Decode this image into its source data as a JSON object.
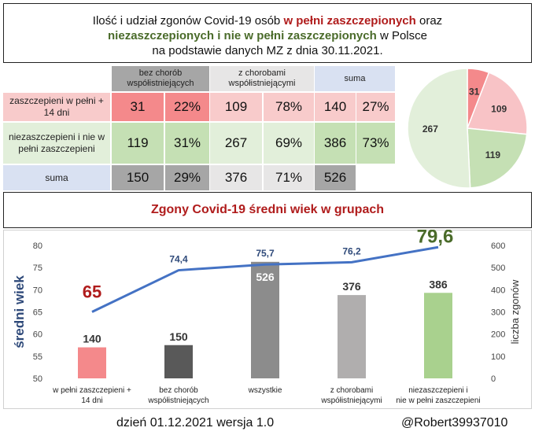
{
  "title": {
    "line1_pre": "Ilość i udział zgonów Covid-19 osób ",
    "line1_red": "w pełni zaszczepionych",
    "line1_post": " oraz",
    "line2_green": "niezaszczepionych i nie w pełni zaszczepionych",
    "line2_post": " w Polsce",
    "line3": "na podstawie danych MZ z dnia 30.11.2021."
  },
  "table": {
    "headers": [
      "bez chorób współistniejących",
      "z chorobami współistniejącymi",
      "suma"
    ],
    "rows": [
      {
        "label": "zaszczepieni w pełni  + 14 dni",
        "v1": "31",
        "p1": "22%",
        "v2": "109",
        "p2": "78%",
        "vs": "140",
        "ps": "27%"
      },
      {
        "label": "niezaszczepieni i nie w pełni zaszczepieni",
        "v1": "119",
        "p1": "31%",
        "v2": "267",
        "p2": "69%",
        "vs": "386",
        "ps": "73%"
      },
      {
        "label": "suma",
        "v1": "150",
        "p1": "29%",
        "v2": "376",
        "p2": "71%",
        "vs": "526",
        "ps": ""
      }
    ]
  },
  "section_title": "Zgony Covid-19 średni wiek w grupach",
  "chart_data": [
    {
      "type": "pie",
      "slices": [
        {
          "value": 31,
          "label": "31",
          "color": "#f4898b"
        },
        {
          "value": 109,
          "label": "109",
          "color": "#f8c3c6"
        },
        {
          "value": 119,
          "label": "119",
          "color": "#c5e0b4"
        },
        {
          "value": 267,
          "label": "267",
          "color": "#e2efda"
        }
      ]
    },
    {
      "type": "bar",
      "categories": [
        "w pełni zaszczepieni + 14 dni",
        "bez chorób współistniejących",
        "wszystkie",
        "z chorobami współistniejącymi",
        "niezaszczepieni i nie w pełni zaszczepieni"
      ],
      "bars": {
        "name": "liczba zgonów",
        "values": [
          140,
          150,
          526,
          376,
          386
        ],
        "colors": [
          "#f4898b",
          "#595959",
          "#8c8c8c",
          "#b0aeae",
          "#a9d18e"
        ],
        "label_colors": [
          "#333333",
          "#333333",
          "#ffffff",
          "#333333",
          "#333333"
        ]
      },
      "line": {
        "name": "średni wiek",
        "values": [
          65,
          74.4,
          75.7,
          76.2,
          79.6
        ],
        "labels": [
          "65",
          "74,4",
          "75,7",
          "76,2",
          "79,6"
        ],
        "color": "#4472c4"
      },
      "ylabel_left": "średni wiek",
      "ylabel_right": "liczba zgonów",
      "ylim_left": [
        50,
        80
      ],
      "ylim_right": [
        0,
        600
      ],
      "yticks_left": [
        "50",
        "55",
        "60",
        "65",
        "70",
        "75",
        "80"
      ],
      "yticks_right": [
        "0",
        "100",
        "200",
        "300",
        "400",
        "500",
        "600"
      ]
    }
  ],
  "footer": {
    "left": "dzień 01.12.2021 wersja 1.0",
    "right": "@Robert39937010"
  }
}
